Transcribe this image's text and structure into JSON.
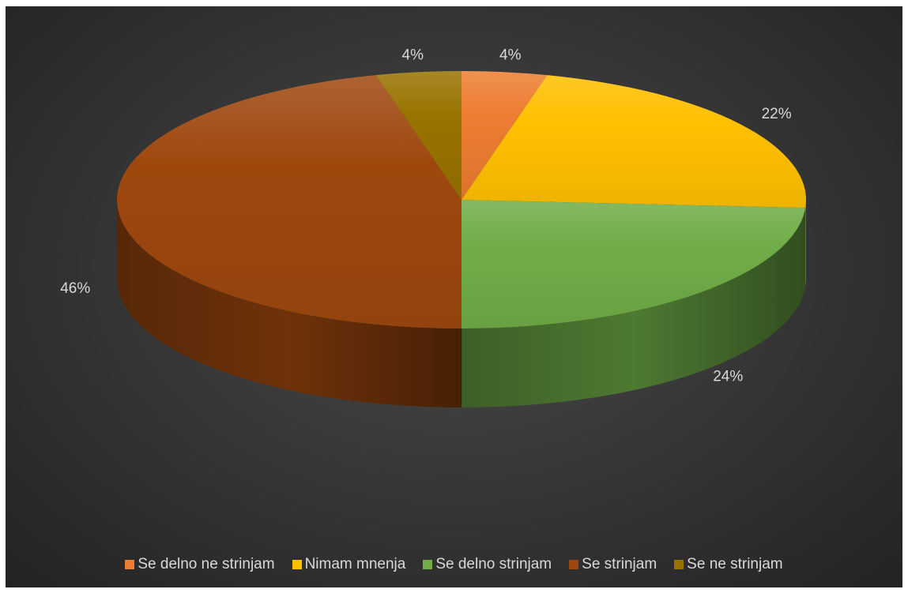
{
  "chart_data": {
    "type": "pie",
    "style": "3d",
    "title": "",
    "legend_position": "bottom",
    "series": [
      {
        "name": "Se delno ne strinjam",
        "value": 4,
        "label": "4%",
        "color": "#ED7D31"
      },
      {
        "name": "Nimam mnenja",
        "value": 22,
        "label": "22%",
        "color": "#FFC000"
      },
      {
        "name": "Se delno strinjam",
        "value": 24,
        "label": "24%",
        "color": "#70AD47"
      },
      {
        "name": "Se strinjam",
        "value": 46,
        "label": "46%",
        "color": "#9E480E"
      },
      {
        "name": "Se ne strinjam",
        "value": 4,
        "label": "4%",
        "color": "#997300"
      }
    ]
  }
}
